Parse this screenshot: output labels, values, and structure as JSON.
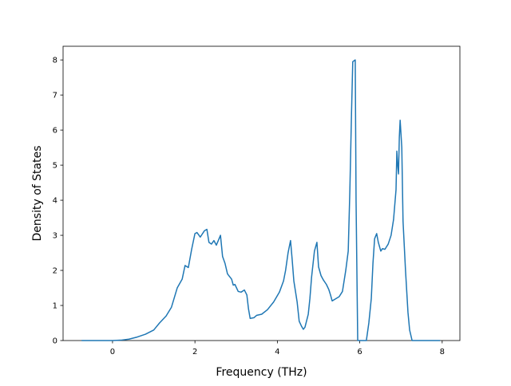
{
  "chart_data": {
    "type": "line",
    "xlabel": "Frequency (THz)",
    "ylabel": "Density of States",
    "x": [
      -0.75,
      0,
      0.2,
      0.4,
      0.6,
      0.8,
      1.0,
      1.14,
      1.3,
      1.43,
      1.57,
      1.69,
      1.76,
      1.84,
      1.92,
      2.0,
      2.05,
      2.13,
      2.23,
      2.29,
      2.34,
      2.4,
      2.46,
      2.52,
      2.62,
      2.67,
      2.73,
      2.79,
      2.89,
      2.93,
      2.97,
      3.05,
      3.12,
      3.2,
      3.26,
      3.3,
      3.34,
      3.43,
      3.5,
      3.62,
      3.76,
      3.91,
      4.05,
      4.15,
      4.2,
      4.26,
      4.32,
      4.36,
      4.4,
      4.48,
      4.53,
      4.59,
      4.63,
      4.67,
      4.75,
      4.79,
      4.83,
      4.9,
      4.96,
      5.0,
      5.06,
      5.12,
      5.19,
      5.25,
      5.29,
      5.33,
      5.4,
      5.5,
      5.58,
      5.66,
      5.72,
      5.76,
      5.8,
      5.83,
      5.89,
      5.91,
      5.95,
      6.16,
      6.22,
      6.28,
      6.32,
      6.36,
      6.41,
      6.45,
      6.51,
      6.55,
      6.61,
      6.69,
      6.76,
      6.82,
      6.88,
      6.9,
      6.92,
      6.94,
      6.96,
      6.98,
      7.02,
      7.05,
      7.11,
      7.17,
      7.21,
      7.27,
      7.95
    ],
    "series": [
      {
        "color": "#1f77b4",
        "values": [
          0,
          0,
          0.01,
          0.04,
          0.1,
          0.18,
          0.3,
          0.5,
          0.7,
          0.95,
          1.5,
          1.75,
          2.14,
          2.08,
          2.6,
          3.05,
          3.08,
          2.95,
          3.13,
          3.17,
          2.8,
          2.75,
          2.85,
          2.72,
          3.0,
          2.4,
          2.2,
          1.9,
          1.75,
          1.58,
          1.6,
          1.4,
          1.38,
          1.44,
          1.3,
          0.9,
          0.63,
          0.65,
          0.72,
          0.75,
          0.88,
          1.1,
          1.38,
          1.7,
          2.0,
          2.5,
          2.85,
          2.3,
          1.7,
          1.1,
          0.55,
          0.4,
          0.32,
          0.38,
          0.75,
          1.2,
          1.8,
          2.55,
          2.8,
          2.1,
          1.85,
          1.72,
          1.6,
          1.45,
          1.3,
          1.13,
          1.18,
          1.25,
          1.4,
          2.0,
          2.55,
          4.3,
          6.5,
          7.95,
          8.0,
          4.0,
          0,
          0,
          0.5,
          1.2,
          2.2,
          2.9,
          3.05,
          2.8,
          2.55,
          2.62,
          2.6,
          2.75,
          3.0,
          3.45,
          4.3,
          5.4,
          5.0,
          4.75,
          5.8,
          6.28,
          5.5,
          3.4,
          2.0,
          0.8,
          0.3,
          0,
          0
        ]
      }
    ],
    "xlim": [
      -1.2,
      8.43
    ],
    "ylim": [
      0,
      8.39
    ],
    "xticks": [
      0,
      2,
      4,
      6,
      8
    ],
    "yticks": [
      0,
      1,
      2,
      3,
      4,
      5,
      6,
      7,
      8
    ]
  }
}
